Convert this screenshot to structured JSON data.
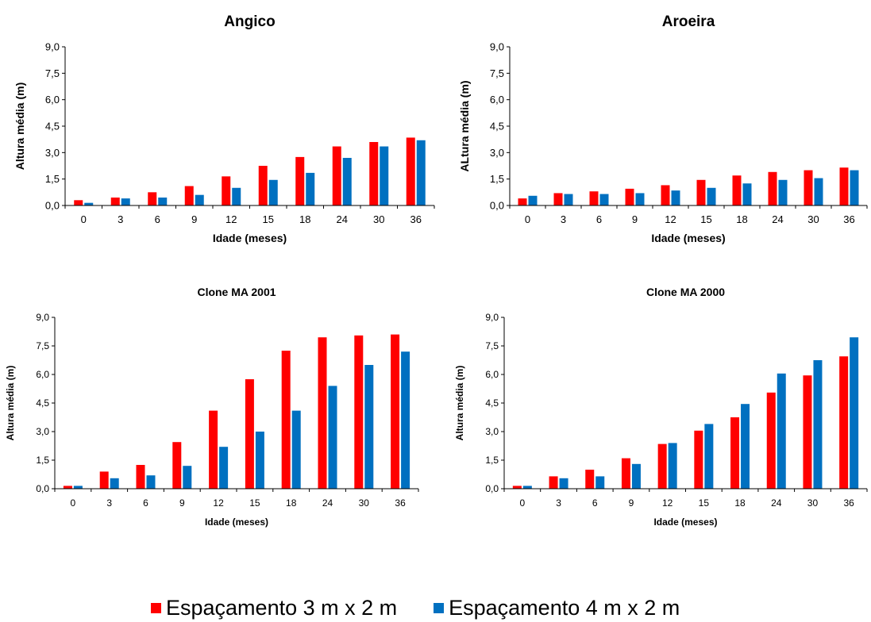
{
  "colors": {
    "series_a": "#ff0000",
    "series_b": "#0070c0",
    "axis": "#000000"
  },
  "legend": {
    "series_a_label": "Espaçamento 3 m x 2 m",
    "series_b_label": "Espaçamento 4 m x 2 m"
  },
  "chart_data": [
    {
      "type": "bar",
      "title": "Angico",
      "xlabel": "Idade (meses)",
      "ylabel": "Altura média (m)",
      "ylim": [
        0,
        9.0
      ],
      "yticks": [
        "0,0",
        "1,5",
        "3,0",
        "4,5",
        "6,0",
        "7,5",
        "9,0"
      ],
      "categories": [
        "0",
        "3",
        "6",
        "9",
        "12",
        "15",
        "18",
        "24",
        "30",
        "36"
      ],
      "series": [
        {
          "name": "Espaçamento 3 m x 2 m",
          "values": [
            0.3,
            0.45,
            0.75,
            1.1,
            1.65,
            2.25,
            2.75,
            3.35,
            3.6,
            3.85
          ]
        },
        {
          "name": "Espaçamento 4 m x 2 m",
          "values": [
            0.15,
            0.4,
            0.45,
            0.6,
            1.0,
            1.45,
            1.85,
            2.7,
            3.35,
            3.7
          ]
        }
      ]
    },
    {
      "type": "bar",
      "title": "Aroeira",
      "xlabel": "Idade (meses)",
      "ylabel": "ALtura média (m)",
      "ylim": [
        0,
        9.0
      ],
      "yticks": [
        "0,0",
        "1,5",
        "3,0",
        "4,5",
        "6,0",
        "7,5",
        "9,0"
      ],
      "categories": [
        "0",
        "3",
        "6",
        "9",
        "12",
        "15",
        "18",
        "24",
        "30",
        "36"
      ],
      "series": [
        {
          "name": "Espaçamento 3 m x 2 m",
          "values": [
            0.4,
            0.7,
            0.8,
            0.95,
            1.15,
            1.45,
            1.7,
            1.9,
            2.0,
            2.15
          ]
        },
        {
          "name": "Espaçamento 4 m x 2 m",
          "values": [
            0.55,
            0.65,
            0.65,
            0.7,
            0.85,
            1.0,
            1.25,
            1.45,
            1.55,
            2.0
          ]
        }
      ]
    },
    {
      "type": "bar",
      "title": "Clone MA 2001",
      "xlabel": "Idade (meses)",
      "ylabel": "Altura média (m)",
      "ylim": [
        0,
        9.0
      ],
      "yticks": [
        "0,0",
        "1,5",
        "3,0",
        "4,5",
        "6,0",
        "7,5",
        "9,0"
      ],
      "categories": [
        "0",
        "3",
        "6",
        "9",
        "12",
        "15",
        "18",
        "24",
        "30",
        "36"
      ],
      "series": [
        {
          "name": "Espaçamento 3 m x 2 m",
          "values": [
            0.15,
            0.9,
            1.25,
            2.45,
            4.1,
            5.75,
            7.25,
            7.95,
            8.05,
            8.1
          ]
        },
        {
          "name": "Espaçamento 4 m x 2 m",
          "values": [
            0.15,
            0.55,
            0.7,
            1.2,
            2.2,
            3.0,
            4.1,
            5.4,
            6.5,
            7.2
          ]
        }
      ]
    },
    {
      "type": "bar",
      "title": "Clone MA 2000",
      "xlabel": "Idade (meses)",
      "ylabel": "Altura média (m)",
      "ylim": [
        0,
        9.0
      ],
      "yticks": [
        "0,0",
        "1,5",
        "3,0",
        "4,5",
        "6,0",
        "7,5",
        "9,0"
      ],
      "categories": [
        "0",
        "3",
        "6",
        "9",
        "12",
        "15",
        "18",
        "24",
        "30",
        "36"
      ],
      "series": [
        {
          "name": "Espaçamento 3 m x 2 m",
          "values": [
            0.15,
            0.65,
            1.0,
            1.6,
            2.35,
            3.05,
            3.75,
            5.05,
            5.95,
            6.95
          ]
        },
        {
          "name": "Espaçamento 4 m x 2 m",
          "values": [
            0.15,
            0.55,
            0.65,
            1.3,
            2.4,
            3.4,
            4.45,
            6.05,
            6.75,
            7.95
          ]
        }
      ]
    }
  ]
}
